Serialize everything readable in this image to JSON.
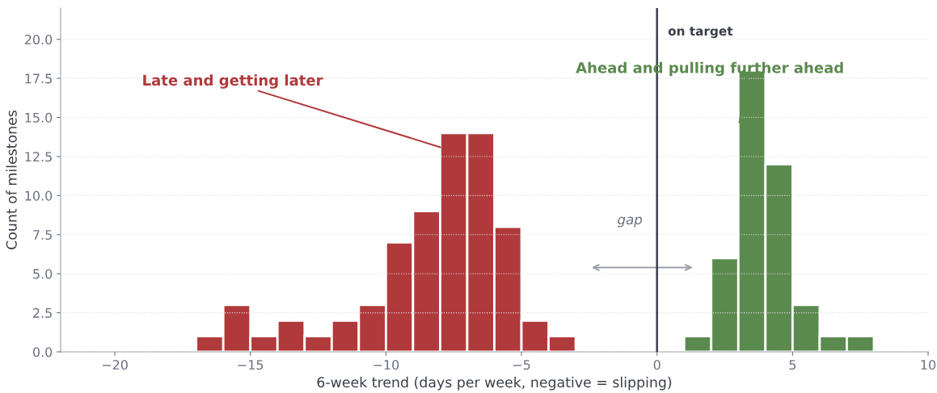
{
  "chart_data": {
    "type": "histogram",
    "xlabel": "6-week trend (days per week, negative = slipping)",
    "ylabel": "Count of milestones",
    "bins": [
      -17,
      -16,
      -15,
      -14,
      -13,
      -12,
      -11,
      -10,
      -9,
      -8,
      -7,
      -6,
      -5,
      -4,
      -3,
      -2,
      -1,
      0,
      1,
      2,
      3,
      4,
      5,
      6,
      7,
      8
    ],
    "values": [
      1,
      3,
      1,
      2,
      1,
      2,
      3,
      7,
      9,
      14,
      14,
      8,
      2,
      1,
      null,
      null,
      null,
      null,
      1,
      6,
      18,
      12,
      3,
      1,
      1
    ],
    "colors": [
      "#b03a3b",
      "#b03a3b",
      "#b03a3b",
      "#b03a3b",
      "#b03a3b",
      "#b03a3b",
      "#b03a3b",
      "#b03a3b",
      "#b03a3b",
      "#b03a3b",
      "#b03a3b",
      "#b03a3b",
      "#b03a3b",
      "#b03a3b",
      null,
      null,
      null,
      null,
      "#5b8a4f",
      "#5b8a4f",
      "#5b8a4f",
      "#5b8a4f",
      "#5b8a4f",
      "#5b8a4f",
      "#5b8a4f"
    ],
    "xlim": [
      -22,
      10
    ],
    "xticks": [
      {
        "value": -20,
        "label": "−20"
      },
      {
        "value": -15,
        "label": "−15"
      },
      {
        "value": -10,
        "label": "−10"
      },
      {
        "value": -5,
        "label": "−5"
      },
      0,
      5,
      10
    ],
    "ylim": [
      0,
      22
    ],
    "yticks": [
      {
        "value": 0,
        "label": "0.0"
      },
      {
        "value": 2.5,
        "label": "2.5"
      },
      {
        "value": 5,
        "label": "5.0"
      },
      {
        "value": 7.5,
        "label": "7.5"
      },
      {
        "value": 10,
        "label": "10.0"
      },
      {
        "value": 12.5,
        "label": "12.5"
      },
      {
        "value": 15,
        "label": "15.0"
      },
      {
        "value": 17.5,
        "label": "17.5"
      },
      {
        "value": 20,
        "label": "20.0"
      }
    ],
    "grid": "y",
    "ref_lines": [
      {
        "axis": "x",
        "value": 0,
        "label": "on target",
        "color": "#3b3f4a"
      }
    ],
    "annotations": [
      {
        "text": "Late and getting later",
        "x": -8,
        "y": 13.1
      },
      {
        "text": "Ahead and pulling further ahead",
        "x": 3.04,
        "y": 14.7
      },
      "gap"
    ]
  }
}
